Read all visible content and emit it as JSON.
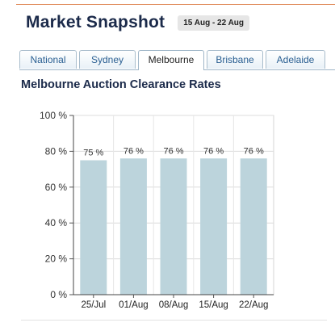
{
  "header": {
    "title": "Market Snapshot",
    "date_range": "15 Aug - 22 Aug"
  },
  "tabs": [
    {
      "label": "National",
      "active": false
    },
    {
      "label": "Sydney",
      "active": false
    },
    {
      "label": "Melbourne",
      "active": true
    },
    {
      "label": "Brisbane",
      "active": false
    },
    {
      "label": "Adelaide",
      "active": false
    }
  ],
  "chart_title": "Melbourne Auction Clearance Rates",
  "chart_data": {
    "type": "bar",
    "title": "Melbourne Auction Clearance Rates",
    "categories": [
      "25/Jul",
      "01/Aug",
      "08/Aug",
      "15/Aug",
      "22/Aug"
    ],
    "values": [
      75,
      76,
      76,
      76,
      76
    ],
    "data_labels": [
      "75 %",
      "76 %",
      "76 %",
      "76 %",
      "76 %"
    ],
    "ylim": [
      0,
      100
    ],
    "y_ticks": [
      0,
      20,
      40,
      60,
      80,
      100
    ],
    "y_tick_labels": [
      "0 %",
      "20 %",
      "40 %",
      "60 %",
      "80 %",
      "100 %"
    ],
    "xlabel": "",
    "ylabel": "",
    "grid": true,
    "bar_color": "#bcd4dc"
  }
}
